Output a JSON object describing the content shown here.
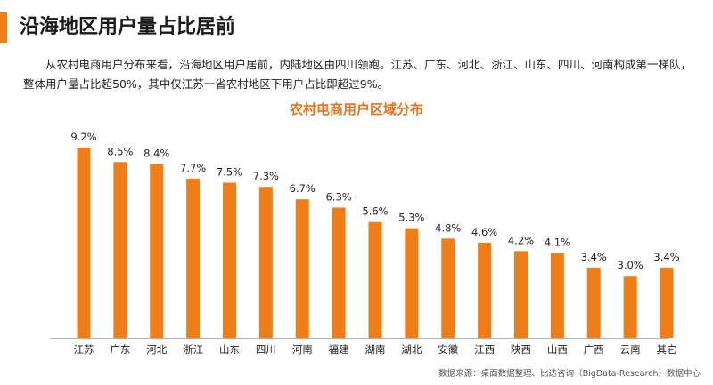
{
  "page": {
    "title": "沿海地区用户量占比居前",
    "intro": "从农村电商用户分布来看，沿海地区用户居前，内陆地区由四川领跑。江苏、广东、河北、浙江、山东、四川、河南构成第一梯队，整体用户量占比超50%，其中仅江苏一省农村地区下用户占比即超过9%。",
    "source": "数据来源：桌面数据整理、比达咨询（BigData-Research）数据中心"
  },
  "colors": {
    "accent": "#f07e18",
    "bar": "#f07e18",
    "axis": "#b0b0b0"
  },
  "chart_data": {
    "type": "bar",
    "title": "农村电商用户区域分布",
    "categories": [
      "江苏",
      "广东",
      "河北",
      "浙江",
      "山东",
      "四川",
      "河南",
      "福建",
      "湖南",
      "湖北",
      "安徽",
      "江西",
      "陕西",
      "山西",
      "广西",
      "云南",
      "其它"
    ],
    "values": [
      9.2,
      8.5,
      8.4,
      7.7,
      7.5,
      7.3,
      6.7,
      6.3,
      5.6,
      5.3,
      4.8,
      4.6,
      4.2,
      4.1,
      3.4,
      3.0,
      3.4
    ],
    "value_labels": [
      "9.2%",
      "8.5%",
      "8.4%",
      "7.7%",
      "7.5%",
      "7.3%",
      "6.7%",
      "6.3%",
      "5.6%",
      "5.3%",
      "4.8%",
      "4.6%",
      "4.2%",
      "4.1%",
      "3.4%",
      "3.0%",
      "3.4%"
    ],
    "ylim": [
      0,
      10
    ],
    "xlabel": "",
    "ylabel": "",
    "grid": false
  }
}
